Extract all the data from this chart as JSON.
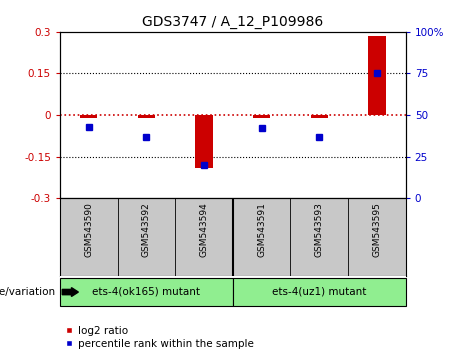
{
  "title": "GDS3747 / A_12_P109986",
  "samples": [
    "GSM543590",
    "GSM543592",
    "GSM543594",
    "GSM543591",
    "GSM543593",
    "GSM543595"
  ],
  "log2_ratios": [
    -0.01,
    -0.01,
    -0.19,
    -0.01,
    -0.01,
    0.285
  ],
  "percentile_ranks": [
    43,
    37,
    20,
    42,
    37,
    75
  ],
  "ylim_left": [
    -0.3,
    0.3
  ],
  "ylim_right": [
    0,
    100
  ],
  "yticks_left": [
    -0.3,
    -0.15,
    0,
    0.15,
    0.3
  ],
  "yticks_right": [
    0,
    25,
    50,
    75,
    100
  ],
  "ytick_labels_left": [
    "-0.3",
    "-0.15",
    "0",
    "0.15",
    "0.3"
  ],
  "ytick_labels_right": [
    "0",
    "25",
    "50",
    "75",
    "100%"
  ],
  "groups": [
    {
      "label": "ets-4(ok165) mutant",
      "color": "#90EE90"
    },
    {
      "label": "ets-4(uz1) mutant",
      "color": "#90EE90"
    }
  ],
  "bar_color": "#CC0000",
  "dot_color": "#0000CC",
  "dotted_line_color": "#CC0000",
  "bg_color": "#ffffff",
  "plot_bg_color": "#ffffff",
  "label_bg_color": "#c8c8c8",
  "tick_label_color_left": "#CC0000",
  "tick_label_color_right": "#0000CC",
  "group_label": "genotype/variation",
  "legend_items": [
    "log2 ratio",
    "percentile rank within the sample"
  ],
  "bar_width": 0.3,
  "figsize": [
    4.61,
    3.54
  ],
  "dpi": 100
}
